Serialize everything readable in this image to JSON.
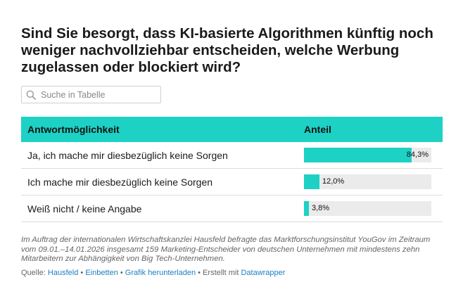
{
  "title": "Sind Sie besorgt, dass KI-basierte Algorithmen künftig noch weniger nachvollziehbar entscheiden, welche Werbung zugelassen oder blockiert wird?",
  "search": {
    "placeholder": "Suche in Tabelle"
  },
  "colors": {
    "accent": "#1dd1c5",
    "track": "#ebebeb",
    "link": "#1b7fc4"
  },
  "chart_data": {
    "type": "table",
    "columns": [
      "Antwortmöglichkeit",
      "Anteil"
    ],
    "rows": [
      {
        "label": "Ja, ich mache mir diesbezüglich keine Sorgen",
        "value": 84.3,
        "display": "84,3%"
      },
      {
        "label": "Ich mache mir diesbezüglich keine Sorgen",
        "value": 12.0,
        "display": "12,0%"
      },
      {
        "label": "Weiß nicht / keine Angabe",
        "value": 3.8,
        "display": "3,8%"
      }
    ],
    "max": 100
  },
  "notes": "Im Auftrag der internationalen Wirtschaftskanzlei Hausfeld befragte das Marktforschungsinstitut YouGov im Zeitraum vom 09.01.–14.01.2026 insgesamt 159 Marketing-Entscheider von deutschen Unternehmen mit mindestens zehn Mitarbeitern zur Abhängigkeit von Big Tech-Unternehmen.",
  "footer": {
    "source_label": "Quelle:",
    "source": "Hausfeld",
    "sep": "•",
    "embed": "Einbetten",
    "download": "Grafik herunterladen",
    "created_with": "Erstellt mit",
    "tool": "Datawrapper"
  }
}
